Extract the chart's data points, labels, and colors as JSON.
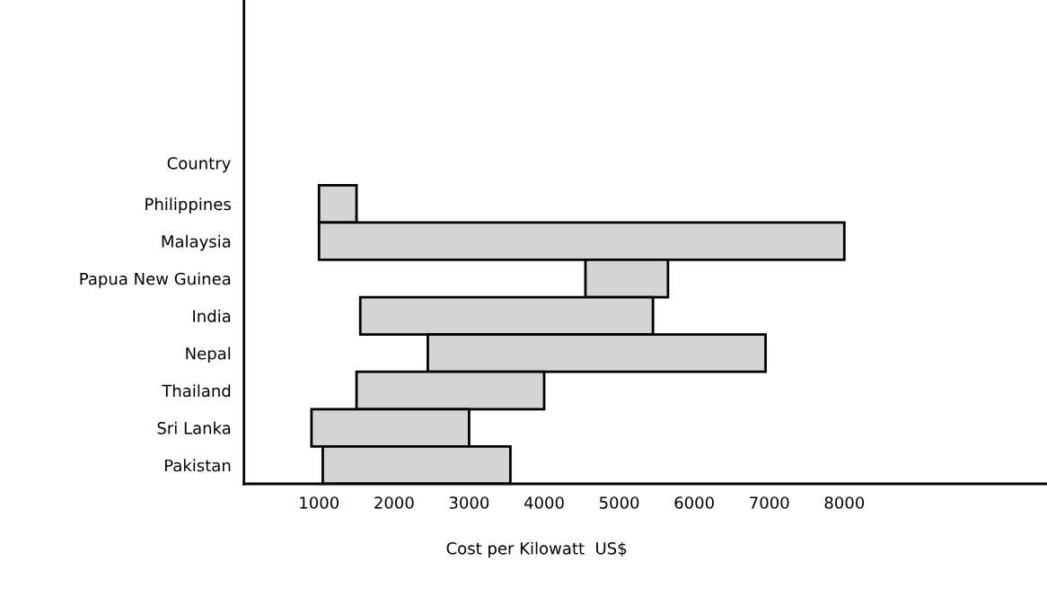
{
  "chart_data": {
    "type": "bar",
    "orientation": "horizontal",
    "xlabel": "Cost per Kilowatt  US$",
    "ylabel": "Country",
    "categories": [
      "Philippines",
      "Malaysia",
      "Papua New Guinea",
      "India",
      "Nepal",
      "Thailand",
      "Sri Lanka",
      "Pakistan"
    ],
    "base": [
      1000,
      1000,
      4550,
      1550,
      2450,
      1500,
      900,
      1050
    ],
    "values": [
      500,
      7000,
      1100,
      3900,
      4500,
      2500,
      2100,
      2500
    ],
    "color": "#d4d4d4",
    "xlim": [
      0,
      10700
    ],
    "xticks": [
      1000,
      2000,
      3000,
      4000,
      5000,
      6000,
      7000,
      8000
    ],
    "grid": false
  }
}
